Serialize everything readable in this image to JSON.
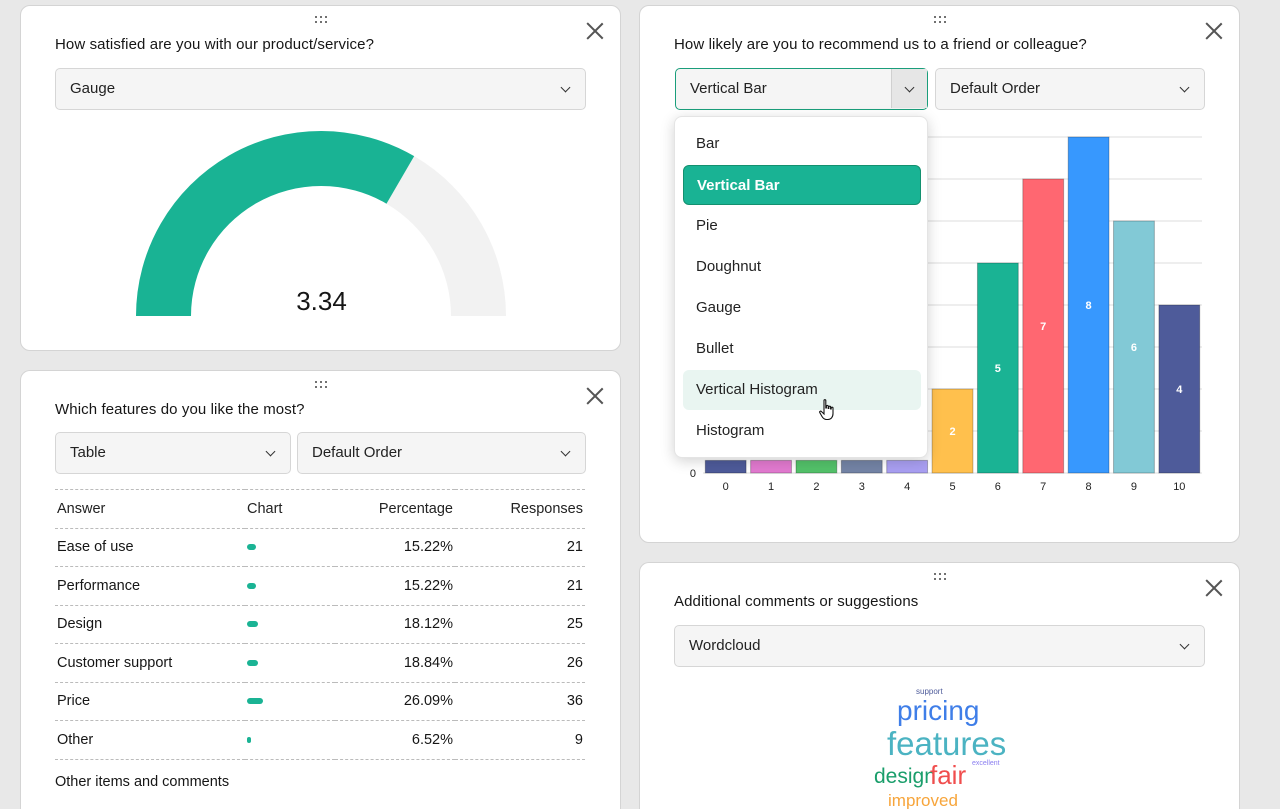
{
  "satisfaction": {
    "title": "How satisfied are you with our product/service?",
    "visualizer": "Gauge",
    "gauge_value": "3.34",
    "gauge_max": 5,
    "gauge_color": "#19b394"
  },
  "recommend": {
    "title": "How likely are you to recommend us to a friend or colleague?",
    "visualizer": "Vertical Bar",
    "order": "Default Order",
    "dropdown_options": [
      "Bar",
      "Vertical Bar",
      "Pie",
      "Doughnut",
      "Gauge",
      "Bullet",
      "Vertical Histogram",
      "Histogram"
    ],
    "dropdown_selected": "Vertical Bar",
    "dropdown_hovered": "Vertical Histogram"
  },
  "chart_data": {
    "type": "bar",
    "categories": [
      "0",
      "1",
      "2",
      "3",
      "4",
      "5",
      "6",
      "7",
      "8",
      "9",
      "10"
    ],
    "values": [
      0.3,
      0.3,
      0.3,
      0.3,
      0.3,
      2,
      5,
      7,
      8,
      6,
      4
    ],
    "data_labels": [
      "",
      "",
      "",
      "",
      "",
      "2",
      "5",
      "7",
      "8",
      "6",
      "4"
    ],
    "colors": [
      "#4e5b9a",
      "#e27ad0",
      "#53c26a",
      "#7484a6",
      "#a99ff2",
      "#ffc04d",
      "#1ab394",
      "#ff6771",
      "#3798fe",
      "#82c9d6",
      "#4e5b9a"
    ],
    "ylim": [
      0,
      8
    ],
    "y_tick_labels": [
      "0"
    ]
  },
  "features": {
    "title": "Which features do you like the most?",
    "visualizer": "Table",
    "order": "Default Order",
    "columns": [
      "Answer",
      "Chart",
      "Percentage",
      "Responses"
    ],
    "rows": [
      {
        "answer": "Ease of use",
        "percentage": "15.22%",
        "responses": "21",
        "share": 0.1522
      },
      {
        "answer": "Performance",
        "percentage": "15.22%",
        "responses": "21",
        "share": 0.1522
      },
      {
        "answer": "Design",
        "percentage": "18.12%",
        "responses": "25",
        "share": 0.1812
      },
      {
        "answer": "Customer support",
        "percentage": "18.84%",
        "responses": "26",
        "share": 0.1884
      },
      {
        "answer": "Price",
        "percentage": "26.09%",
        "responses": "36",
        "share": 0.2609
      },
      {
        "answer": "Other",
        "percentage": "6.52%",
        "responses": "9",
        "share": 0.0652
      }
    ],
    "other_comments": "Other items and comments"
  },
  "comments": {
    "title": "Additional comments or suggestions",
    "visualizer": "Wordcloud",
    "words": [
      {
        "text": "support",
        "color": "#4e5b9a"
      },
      {
        "text": "pricing",
        "color": "#3f7ee8"
      },
      {
        "text": "features",
        "color": "#4bb3c2"
      },
      {
        "text": "excellent",
        "color": "#8b7ff0"
      },
      {
        "text": "design",
        "color": "#1a9e6b"
      },
      {
        "text": "fair",
        "color": "#f04d4d"
      },
      {
        "text": "improved",
        "color": "#f7a53b"
      }
    ]
  }
}
